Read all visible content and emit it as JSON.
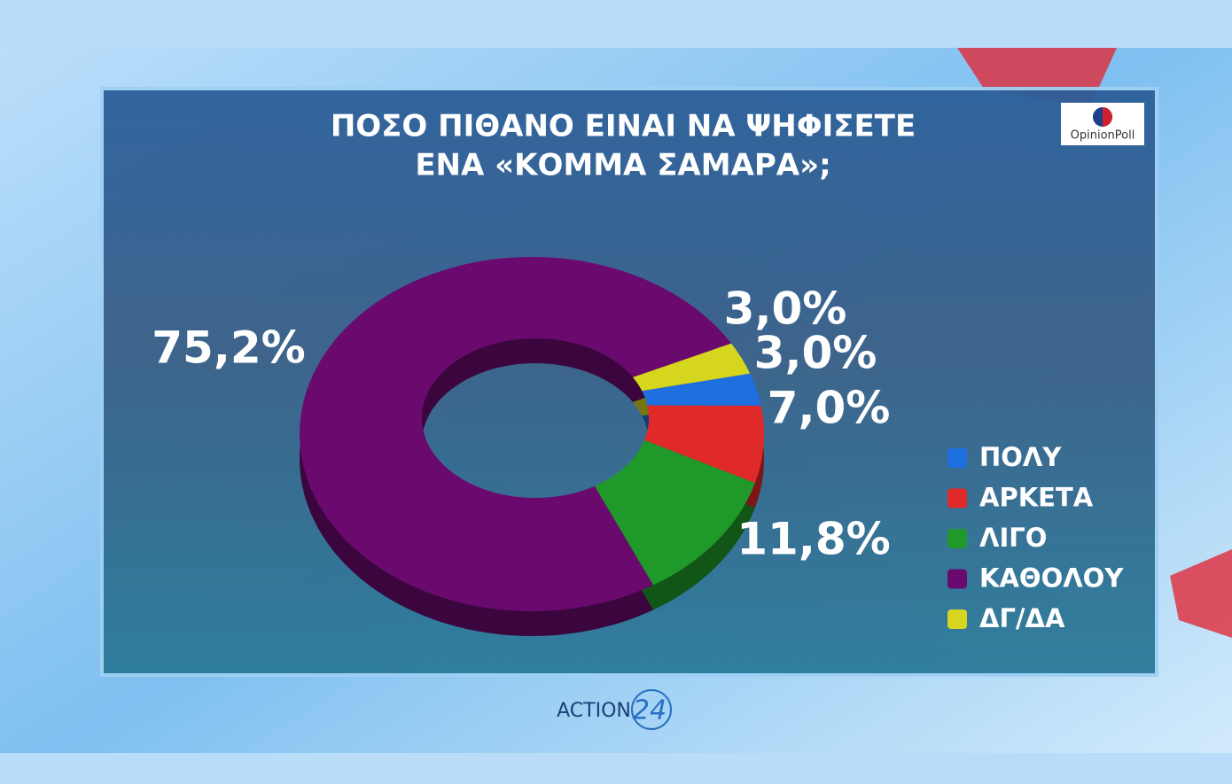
{
  "chart_data": {
    "type": "donut",
    "title": [
      "ΠΟΣΟ ΠΙΘΑΝΟ ΕΙΝΑΙ ΝΑ ΨΗΦΙΣΕΤΕ",
      "ΕΝΑ «ΚΟΜΜΑ ΣΑΜΑΡΑ»;"
    ],
    "categories": [
      "ΠΟΛΥ",
      "ΑΡΚΕΤΑ",
      "ΛΙΓΟ",
      "ΚΑΘΟΛΟΥ",
      "ΔΓ/ΔΑ"
    ],
    "values": [
      3.0,
      7.0,
      11.8,
      75.2,
      3.0
    ],
    "value_labels": [
      "3,0%",
      "7,0%",
      "11,8%",
      "75,2%",
      "3,0%"
    ],
    "colors": [
      "#1e6fe0",
      "#e02a2a",
      "#1f9a2a",
      "#6a0a6e",
      "#d6d61e"
    ],
    "legend": "right"
  },
  "logos": {
    "pollster": "OpinionPoll",
    "channel": "ACTION",
    "channel_number": "24"
  }
}
